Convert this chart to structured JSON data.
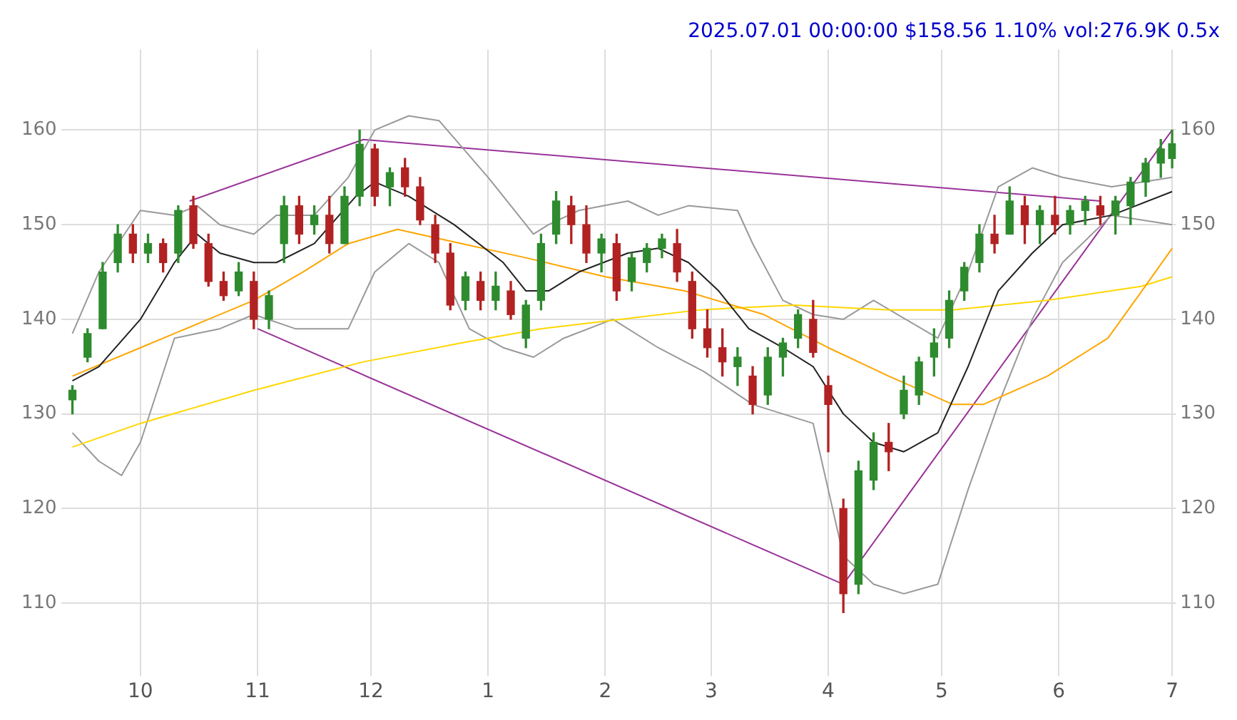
{
  "chart_data": {
    "type": "candlestick",
    "title": "2025.07.01 00:00:00 $158.56 1.10% vol:276.9K 0.5x",
    "x": [
      "2024-09-13",
      "2024-09-17",
      "2024-09-21",
      "2024-09-25",
      "2024-09-29",
      "2024-10-03",
      "2024-10-07",
      "2024-10-11",
      "2024-10-15",
      "2024-10-19",
      "2024-10-23",
      "2024-10-27",
      "2024-10-31",
      "2024-11-04",
      "2024-11-08",
      "2024-11-12",
      "2024-11-16",
      "2024-11-20",
      "2024-11-24",
      "2024-11-28",
      "2024-12-02",
      "2024-12-06",
      "2024-12-10",
      "2024-12-14",
      "2024-12-18",
      "2024-12-22",
      "2024-12-26",
      "2024-12-30",
      "2025-01-03",
      "2025-01-07",
      "2025-01-11",
      "2025-01-15",
      "2025-01-19",
      "2025-01-23",
      "2025-01-27",
      "2025-01-31",
      "2025-02-04",
      "2025-02-08",
      "2025-02-12",
      "2025-02-16",
      "2025-02-20",
      "2025-02-24",
      "2025-02-28",
      "2025-03-04",
      "2025-03-08",
      "2025-03-12",
      "2025-03-16",
      "2025-03-20",
      "2025-03-24",
      "2025-03-28",
      "2025-04-01",
      "2025-04-05",
      "2025-04-09",
      "2025-04-13",
      "2025-04-17",
      "2025-04-21",
      "2025-04-25",
      "2025-04-29",
      "2025-05-03",
      "2025-05-07",
      "2025-05-11",
      "2025-05-15",
      "2025-05-19",
      "2025-05-23",
      "2025-05-27",
      "2025-05-31",
      "2025-06-04",
      "2025-06-08",
      "2025-06-12",
      "2025-06-16",
      "2025-06-20",
      "2025-06-24",
      "2025-06-28",
      "2025-07-01"
    ],
    "ohlc": [
      [
        131.5,
        133,
        130,
        132.5
      ],
      [
        136,
        139,
        135.5,
        138.5
      ],
      [
        139,
        146,
        139,
        145
      ],
      [
        146,
        150,
        145,
        149
      ],
      [
        149,
        150,
        146,
        147
      ],
      [
        147,
        149,
        146,
        148
      ],
      [
        148,
        148.5,
        145,
        146
      ],
      [
        147,
        152,
        146,
        151.5
      ],
      [
        152,
        153,
        147.5,
        148
      ],
      [
        148,
        149,
        143.5,
        144
      ],
      [
        144,
        145,
        142,
        142.5
      ],
      [
        143,
        146,
        142.5,
        145
      ],
      [
        144,
        145,
        139,
        140
      ],
      [
        140,
        143,
        139,
        142.5
      ],
      [
        148,
        153,
        146,
        152
      ],
      [
        152,
        153,
        148,
        149
      ],
      [
        150,
        152,
        149,
        151
      ],
      [
        151,
        153,
        147,
        148
      ],
      [
        148,
        154,
        148,
        153
      ],
      [
        153,
        160,
        152,
        158.5
      ],
      [
        158,
        158.5,
        152,
        153
      ],
      [
        154,
        156,
        152,
        155.5
      ],
      [
        156,
        157,
        153,
        154
      ],
      [
        154,
        155,
        150,
        150.5
      ],
      [
        150,
        151,
        146,
        147
      ],
      [
        147,
        148,
        141,
        141.5
      ],
      [
        142,
        145,
        141,
        144.5
      ],
      [
        144,
        145,
        141,
        142
      ],
      [
        142,
        145,
        141,
        143.5
      ],
      [
        143,
        144,
        140,
        140.5
      ],
      [
        138,
        142,
        137,
        141.5
      ],
      [
        142,
        149,
        141,
        148
      ],
      [
        149,
        153.5,
        148,
        152.5
      ],
      [
        152,
        153,
        148,
        150
      ],
      [
        150,
        152,
        146,
        147
      ],
      [
        147,
        149,
        145,
        148.5
      ],
      [
        148,
        149,
        142,
        143
      ],
      [
        144,
        147,
        143,
        146.5
      ],
      [
        146,
        148,
        145,
        147.5
      ],
      [
        147.5,
        149,
        146.5,
        148.5
      ],
      [
        148,
        149.5,
        144,
        145
      ],
      [
        144,
        145,
        138,
        139
      ],
      [
        139,
        141,
        136,
        137
      ],
      [
        137,
        139,
        134,
        135.5
      ],
      [
        135,
        137,
        133,
        136
      ],
      [
        134,
        135,
        130,
        131
      ],
      [
        132,
        137,
        131,
        136
      ],
      [
        136,
        138,
        134,
        137.5
      ],
      [
        138,
        141,
        137,
        140.5
      ],
      [
        140,
        142,
        136,
        136.5
      ],
      [
        133,
        134,
        126,
        131
      ],
      [
        120,
        121,
        109,
        111
      ],
      [
        112,
        125,
        111,
        124
      ],
      [
        123,
        128,
        122,
        127
      ],
      [
        127,
        129,
        124,
        126
      ],
      [
        130,
        134,
        129.5,
        132.5
      ],
      [
        132,
        136,
        131,
        135.5
      ],
      [
        136,
        139,
        134,
        137.5
      ],
      [
        138,
        143,
        137,
        142
      ],
      [
        143,
        146,
        142,
        145.5
      ],
      [
        146,
        150,
        145,
        149
      ],
      [
        149,
        151,
        147,
        148
      ],
      [
        149,
        154,
        149,
        152.5
      ],
      [
        152,
        153,
        148,
        150
      ],
      [
        150,
        152,
        148,
        151.5
      ],
      [
        151,
        153,
        149,
        150
      ],
      [
        150,
        152,
        149,
        151.5
      ],
      [
        151.5,
        153,
        150,
        152.5
      ],
      [
        152,
        153,
        150,
        151
      ],
      [
        151,
        153,
        149,
        152.5
      ],
      [
        152,
        155,
        150,
        154.5
      ],
      [
        154.5,
        157,
        153,
        156.5
      ],
      [
        156.5,
        159,
        155,
        158
      ],
      [
        157,
        160,
        156,
        158.56
      ]
    ],
    "colors": [
      "#2e8b2e",
      "#2e8b2e",
      "#2e8b2e",
      "#2e8b2e",
      "#b22222",
      "#2e8b2e",
      "#b22222",
      "#2e8b2e",
      "#b22222",
      "#b22222",
      "#b22222",
      "#2e8b2e",
      "#b22222",
      "#2e8b2e",
      "#2e8b2e",
      "#b22222",
      "#2e8b2e",
      "#b22222",
      "#2e8b2e",
      "#2e8b2e",
      "#b22222",
      "#2e8b2e",
      "#b22222",
      "#b22222",
      "#b22222",
      "#b22222",
      "#2e8b2e",
      "#b22222",
      "#2e8b2e",
      "#b22222",
      "#2e8b2e",
      "#2e8b2e",
      "#2e8b2e",
      "#b22222",
      "#b22222",
      "#2e8b2e",
      "#b22222",
      "#2e8b2e",
      "#2e8b2e",
      "#2e8b2e",
      "#b22222",
      "#b22222",
      "#b22222",
      "#b22222",
      "#2e8b2e",
      "#b22222",
      "#2e8b2e",
      "#2e8b2e",
      "#2e8b2e",
      "#b22222",
      "#b22222",
      "#b22222",
      "#2e8b2e",
      "#2e8b2e",
      "#b22222",
      "#2e8b2e",
      "#2e8b2e",
      "#2e8b2e",
      "#2e8b2e",
      "#2e8b2e",
      "#2e8b2e",
      "#b22222",
      "#2e8b2e",
      "#b22222",
      "#2e8b2e",
      "#b22222",
      "#2e8b2e",
      "#2e8b2e",
      "#b22222",
      "#2e8b2e",
      "#2e8b2e",
      "#2e8b2e",
      "#2e8b2e",
      "#2e8b2e"
    ],
    "series": [
      {
        "type": "line",
        "color": "#222222",
        "x": [
          "2024-09-13",
          "2024-09-20",
          "2024-10-01",
          "2024-10-10",
          "2024-10-16",
          "2024-10-22",
          "2024-10-31",
          "2024-11-06",
          "2024-11-16",
          "2024-11-27",
          "2024-12-02",
          "2024-12-11",
          "2024-12-23",
          "2025-01-05",
          "2025-01-11",
          "2025-01-17",
          "2025-01-25",
          "2025-02-07",
          "2025-02-15",
          "2025-02-23",
          "2025-03-03",
          "2025-03-11",
          "2025-03-20",
          "2025-03-28",
          "2025-04-05",
          "2025-04-13",
          "2025-04-21",
          "2025-04-30",
          "2025-05-08",
          "2025-05-16",
          "2025-05-25",
          "2025-06-02",
          "2025-06-15",
          "2025-07-01"
        ],
        "values": [
          133.5,
          135,
          140,
          146,
          149,
          147,
          146,
          146,
          148,
          153,
          154.5,
          153,
          150,
          146,
          143,
          143,
          145,
          147,
          147.5,
          146,
          143,
          139,
          137,
          135,
          130,
          127,
          126,
          128,
          135,
          143,
          147,
          150,
          151,
          153.5
        ]
      },
      {
        "type": "line",
        "color": "#ffa500",
        "x": [
          "2024-09-13",
          "2024-10-01",
          "2024-10-19",
          "2024-10-31",
          "2024-11-13",
          "2024-11-25",
          "2024-12-08",
          "2024-12-25",
          "2025-01-11",
          "2025-02-01",
          "2025-02-22",
          "2025-03-15",
          "2025-04-01",
          "2025-04-17",
          "2025-05-04",
          "2025-05-12",
          "2025-05-29",
          "2025-06-14",
          "2025-06-23",
          "2025-07-01"
        ],
        "values": [
          134,
          137,
          140,
          142,
          145,
          148,
          149.5,
          148,
          146.5,
          144.5,
          143,
          140.5,
          137,
          134,
          131,
          131,
          134,
          138,
          143,
          147.5
        ]
      },
      {
        "type": "line",
        "color": "#ffd700",
        "x": [
          "2024-09-13",
          "2024-10-01",
          "2024-10-31",
          "2024-11-29",
          "2024-12-25",
          "2025-01-15",
          "2025-02-05",
          "2025-02-26",
          "2025-03-23",
          "2025-04-17",
          "2025-05-04",
          "2025-05-29",
          "2025-06-23",
          "2025-07-01"
        ],
        "values": [
          126.5,
          129,
          132.5,
          135.5,
          137.5,
          139,
          140,
          141,
          141.5,
          141,
          141,
          142,
          143.5,
          144.5
        ]
      },
      {
        "type": "line",
        "color": "#999999",
        "x": [
          "2024-09-13",
          "2024-09-20",
          "2024-10-01",
          "2024-10-10",
          "2024-10-16",
          "2024-10-22",
          "2024-10-31",
          "2024-11-06",
          "2024-11-16",
          "2024-11-25",
          "2024-12-02",
          "2024-12-11",
          "2024-12-19",
          "2025-01-01",
          "2025-01-13",
          "2025-01-17",
          "2025-01-25",
          "2025-02-07",
          "2025-02-15",
          "2025-02-23",
          "2025-03-08",
          "2025-03-12",
          "2025-03-20",
          "2025-03-28",
          "2025-04-05",
          "2025-04-13",
          "2025-04-30",
          "2025-05-08",
          "2025-05-16",
          "2025-05-25",
          "2025-06-02",
          "2025-06-15",
          "2025-07-01"
        ],
        "values": [
          138.5,
          145,
          151.5,
          151,
          152,
          150,
          149,
          151,
          151,
          155,
          160,
          161.5,
          161,
          155,
          149,
          150,
          151.5,
          152.5,
          151,
          152,
          151.5,
          148,
          142,
          140.5,
          140,
          142,
          138,
          145,
          154,
          156,
          155,
          154,
          155
        ]
      },
      {
        "type": "line",
        "color": "#999999",
        "x": [
          "2024-09-13",
          "2024-09-20",
          "2024-09-26",
          "2024-10-01",
          "2024-10-10",
          "2024-10-16",
          "2024-10-22",
          "2024-10-31",
          "2024-11-11",
          "2024-11-25",
          "2024-12-02",
          "2024-12-11",
          "2024-12-19",
          "2024-12-27",
          "2025-01-05",
          "2025-01-13",
          "2025-01-21",
          "2025-02-03",
          "2025-02-15",
          "2025-02-27",
          "2025-03-12",
          "2025-03-20",
          "2025-03-28",
          "2025-04-05",
          "2025-04-13",
          "2025-04-21",
          "2025-04-30",
          "2025-05-08",
          "2025-05-16",
          "2025-05-25",
          "2025-06-02",
          "2025-06-15",
          "2025-07-01"
        ],
        "values": [
          128,
          125,
          123.5,
          127,
          138,
          138.5,
          139,
          140.5,
          139,
          139,
          145,
          148,
          146,
          139,
          137,
          136,
          138,
          140,
          137,
          134.5,
          131,
          130,
          129,
          115,
          112,
          111,
          112,
          122,
          131,
          140,
          146,
          151,
          150
        ]
      },
      {
        "type": "line",
        "color": "#993399",
        "x": [
          "2024-10-14",
          "2024-11-29",
          "2025-06-12"
        ],
        "values": [
          152.5,
          159,
          152.5
        ]
      },
      {
        "type": "line",
        "color": "#993399",
        "x": [
          "2024-11-01",
          "2025-04-05",
          "2025-07-01"
        ],
        "values": [
          139,
          112,
          160
        ]
      }
    ],
    "xlim": [
      "2024-09-10",
      "2025-07-02"
    ],
    "xticks": [
      {
        "value": "2024-10-01",
        "label": "10"
      },
      {
        "value": "2024-11-01",
        "label": "11"
      },
      {
        "value": "2024-12-01",
        "label": "12"
      },
      {
        "value": "2025-01-01",
        "label": "1"
      },
      {
        "value": "2025-02-01",
        "label": "2"
      },
      {
        "value": "2025-03-01",
        "label": "3"
      },
      {
        "value": "2025-04-01",
        "label": "4"
      },
      {
        "value": "2025-05-01",
        "label": "5"
      },
      {
        "value": "2025-06-01",
        "label": "6"
      },
      {
        "value": "2025-07-01",
        "label": "7"
      }
    ],
    "ylim": [
      103.5,
      168.5
    ],
    "yticks": [
      110,
      120,
      130,
      140,
      150,
      160
    ],
    "y2lim": [
      103.5,
      168.5
    ],
    "y2ticks": [
      110,
      120,
      130,
      140,
      150,
      160
    ],
    "grid": true,
    "legend": false,
    "marker": "none",
    "line_style": "solid"
  }
}
